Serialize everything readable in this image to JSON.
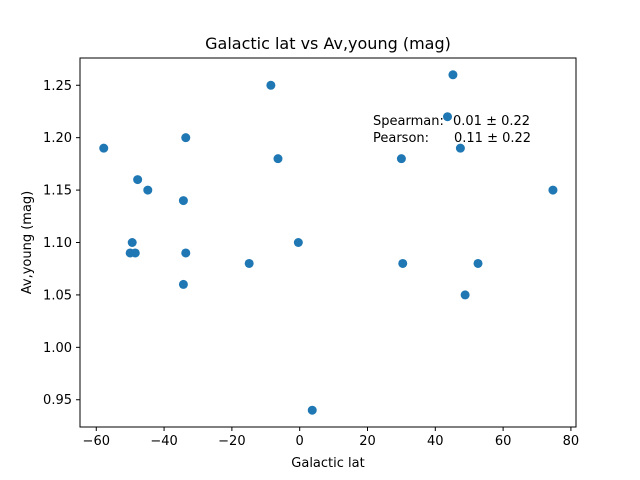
{
  "chart_data": {
    "type": "scatter",
    "title": "Galactic lat vs Av,young (mag)",
    "xlabel": "Galactic lat",
    "ylabel": "Av,young (mag)",
    "xlim": [
      -64.8,
      81.5
    ],
    "ylim": [
      0.924,
      1.276
    ],
    "xticks": [
      -60,
      -40,
      -20,
      0,
      20,
      40,
      60,
      80
    ],
    "yticks": [
      0.95,
      1.0,
      1.05,
      1.1,
      1.15,
      1.2,
      1.25
    ],
    "xtick_labels": [
      "−60",
      "−40",
      "−20",
      "0",
      "20",
      "40",
      "60",
      "80"
    ],
    "ytick_labels": [
      "0.95",
      "1.00",
      "1.05",
      "1.10",
      "1.15",
      "1.20",
      "1.25"
    ],
    "grid": false,
    "legend": false,
    "marker_color": "#1f77b4",
    "points": [
      {
        "x": -57.8,
        "y": 1.19
      },
      {
        "x": -47.8,
        "y": 1.16
      },
      {
        "x": -44.8,
        "y": 1.15
      },
      {
        "x": -49.4,
        "y": 1.1
      },
      {
        "x": -50.0,
        "y": 1.09
      },
      {
        "x": -48.5,
        "y": 1.09
      },
      {
        "x": -33.6,
        "y": 1.2
      },
      {
        "x": -34.3,
        "y": 1.14
      },
      {
        "x": -33.6,
        "y": 1.09
      },
      {
        "x": -34.3,
        "y": 1.06
      },
      {
        "x": -8.5,
        "y": 1.25
      },
      {
        "x": -6.4,
        "y": 1.18
      },
      {
        "x": -14.9,
        "y": 1.08
      },
      {
        "x": -0.4,
        "y": 1.1
      },
      {
        "x": 3.7,
        "y": 0.94
      },
      {
        "x": 30.0,
        "y": 1.18
      },
      {
        "x": 30.4,
        "y": 1.08
      },
      {
        "x": 43.6,
        "y": 1.22
      },
      {
        "x": 45.2,
        "y": 1.26
      },
      {
        "x": 47.4,
        "y": 1.19
      },
      {
        "x": 48.8,
        "y": 1.05
      },
      {
        "x": 52.6,
        "y": 1.08
      },
      {
        "x": 74.7,
        "y": 1.15
      }
    ],
    "annotation": {
      "line1_label": "Spearman:",
      "line1_value": "0.01 ± 0.22",
      "line2_label": "Pearson:",
      "line2_value": "0.11 ± 0.22"
    }
  }
}
